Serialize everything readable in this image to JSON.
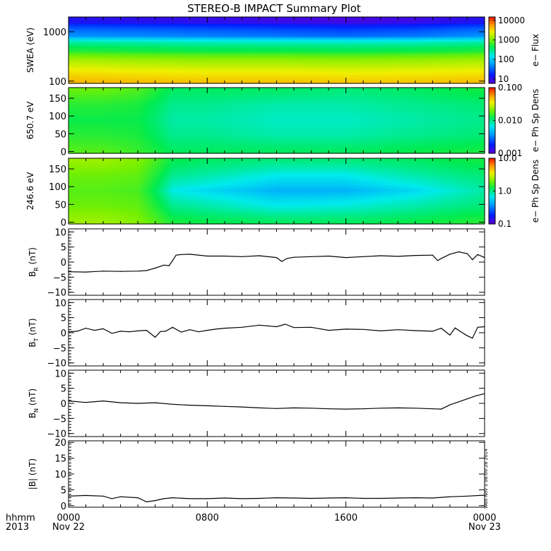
{
  "figure": {
    "title": "STEREO-B IMPACT Summary Plot",
    "stamp": "Wed Nov  5 08:09:28 2014",
    "time_axis": {
      "row1_label": "hhmm",
      "row2_label": "2013",
      "ticks": [
        {
          "hours": 0,
          "time": "0000",
          "date": "Nov 22"
        },
        {
          "hours": 8,
          "time": "0800",
          "date": ""
        },
        {
          "hours": 16,
          "time": "1600",
          "date": ""
        },
        {
          "hours": 24,
          "time": "0000",
          "date": "Nov 23"
        }
      ],
      "range_hours": [
        0,
        24
      ],
      "minor_tick_hours": 1
    }
  },
  "chart_data": [
    {
      "type": "heatmap",
      "id": "swea",
      "ylabel": "SWEA (eV)",
      "yscale": "log",
      "ylim": [
        90,
        2000
      ],
      "yticks": [
        {
          "v": 100,
          "label": "100"
        },
        {
          "v": 1000,
          "label": "1000"
        }
      ],
      "colorbar": {
        "label": "e− Flux",
        "scale": "log",
        "range": [
          6,
          15000
        ],
        "ticks": [
          {
            "v": 10,
            "label": "10"
          },
          {
            "v": 100,
            "label": "100"
          },
          {
            "v": 1000,
            "label": "1000"
          },
          {
            "v": 10000,
            "label": "10000"
          }
        ]
      },
      "time_hours": [
        0,
        4,
        8,
        12,
        16,
        20,
        24
      ],
      "energy_eV": [
        100,
        200,
        400,
        800,
        1600
      ],
      "flux": [
        [
          4500,
          2200,
          600,
          60,
          12
        ],
        [
          4200,
          2000,
          550,
          55,
          11
        ],
        [
          4000,
          1900,
          500,
          50,
          10
        ],
        [
          4000,
          1900,
          500,
          45,
          9
        ],
        [
          3800,
          1800,
          480,
          40,
          8
        ],
        [
          3900,
          1900,
          500,
          45,
          9
        ],
        [
          4200,
          2100,
          580,
          60,
          12
        ]
      ]
    },
    {
      "type": "heatmap",
      "id": "pad650",
      "ylabel": "650.7 eV",
      "ylim": [
        -5,
        180
      ],
      "yticks": [
        {
          "v": 0,
          "label": "0"
        },
        {
          "v": 50,
          "label": "50"
        },
        {
          "v": 100,
          "label": "100"
        },
        {
          "v": 150,
          "label": "150"
        }
      ],
      "colorbar": {
        "label": "e− Ph Sp Dens",
        "scale": "log",
        "range": [
          0.001,
          0.1
        ],
        "ticks": [
          {
            "v": 0.001,
            "label": "0.001"
          },
          {
            "v": 0.01,
            "label": "0.010"
          },
          {
            "v": 0.1,
            "label": "0.100"
          }
        ]
      },
      "time_hours": [
        0,
        2,
        4,
        6,
        8,
        12,
        16,
        20,
        24
      ],
      "pitch_angle_deg": [
        0,
        45,
        90,
        135,
        180
      ],
      "density": [
        [
          0.018,
          0.015,
          0.013,
          0.015,
          0.02
        ],
        [
          0.018,
          0.015,
          0.013,
          0.015,
          0.02
        ],
        [
          0.016,
          0.014,
          0.013,
          0.014,
          0.018
        ],
        [
          0.012,
          0.01,
          0.009,
          0.01,
          0.012
        ],
        [
          0.012,
          0.01,
          0.009,
          0.01,
          0.012
        ],
        [
          0.012,
          0.009,
          0.008,
          0.009,
          0.012
        ],
        [
          0.012,
          0.009,
          0.008,
          0.009,
          0.011
        ],
        [
          0.013,
          0.01,
          0.009,
          0.01,
          0.012
        ],
        [
          0.014,
          0.011,
          0.01,
          0.011,
          0.014
        ]
      ]
    },
    {
      "type": "heatmap",
      "id": "pad246",
      "ylabel": "246.6 eV",
      "ylim": [
        -5,
        180
      ],
      "yticks": [
        {
          "v": 0,
          "label": "0"
        },
        {
          "v": 50,
          "label": "50"
        },
        {
          "v": 100,
          "label": "100"
        },
        {
          "v": 150,
          "label": "150"
        }
      ],
      "colorbar": {
        "label": "e− Ph Sp Dens",
        "scale": "log",
        "range": [
          0.1,
          10
        ],
        "ticks": [
          {
            "v": 0.1,
            "label": "0.1"
          },
          {
            "v": 1,
            "label": "1.0"
          },
          {
            "v": 10,
            "label": "10.0"
          }
        ]
      },
      "time_hours": [
        0,
        2,
        4,
        6,
        8,
        12,
        16,
        20,
        24
      ],
      "pitch_angle_deg": [
        0,
        45,
        90,
        135,
        180
      ],
      "density": [
        [
          2.5,
          2.0,
          1.8,
          2.0,
          2.5
        ],
        [
          2.5,
          2.0,
          1.8,
          2.0,
          2.5
        ],
        [
          2.2,
          1.9,
          1.7,
          1.9,
          2.2
        ],
        [
          1.4,
          1.0,
          0.7,
          1.0,
          1.3
        ],
        [
          1.3,
          0.9,
          0.6,
          0.9,
          1.2
        ],
        [
          1.2,
          0.7,
          0.45,
          0.7,
          1.1
        ],
        [
          1.2,
          0.75,
          0.45,
          0.7,
          1.1
        ],
        [
          1.3,
          0.9,
          0.6,
          0.9,
          1.2
        ],
        [
          1.5,
          1.1,
          0.9,
          1.1,
          1.4
        ]
      ]
    },
    {
      "type": "line",
      "id": "br",
      "ylabel": "B",
      "ylabel_sub": "R",
      "ylabel_unit": "(nT)",
      "ylim": [
        -11,
        11
      ],
      "yticks": [
        {
          "v": -10,
          "label": "−10"
        },
        {
          "v": -5,
          "label": "−5"
        },
        {
          "v": 0,
          "label": "0"
        },
        {
          "v": 5,
          "label": "5"
        },
        {
          "v": 10,
          "label": "10"
        }
      ],
      "x": [
        0,
        1,
        2,
        3,
        4,
        4.5,
        5,
        5.5,
        5.8,
        6.0,
        6.2,
        6.5,
        7,
        8,
        9,
        10,
        11,
        12,
        12.3,
        12.6,
        13,
        14,
        15,
        16,
        17,
        18,
        19,
        20,
        21,
        21.3,
        21.5,
        22,
        22.5,
        23,
        23.3,
        23.6,
        24
      ],
      "y": [
        -3.2,
        -3.3,
        -3.0,
        -3.1,
        -3.0,
        -2.8,
        -2.0,
        -1.0,
        -1.2,
        0.5,
        2.3,
        2.5,
        2.6,
        2.0,
        2.0,
        1.8,
        2.1,
        1.5,
        0.2,
        1.2,
        1.6,
        1.8,
        2.0,
        1.5,
        1.8,
        2.1,
        1.9,
        2.2,
        2.3,
        0.5,
        1.2,
        2.6,
        3.4,
        2.8,
        0.8,
        2.5,
        1.5
      ]
    },
    {
      "type": "line",
      "id": "bt",
      "ylabel": "B",
      "ylabel_sub": "T",
      "ylabel_unit": "(nT)",
      "ylim": [
        -11,
        11
      ],
      "yticks": [
        {
          "v": -10,
          "label": "−10"
        },
        {
          "v": -5,
          "label": "−5"
        },
        {
          "v": 0,
          "label": "0"
        },
        {
          "v": 5,
          "label": "5"
        },
        {
          "v": 10,
          "label": "10"
        }
      ],
      "x": [
        0,
        0.5,
        1,
        1.5,
        2,
        2.5,
        3,
        3.5,
        4,
        4.5,
        5,
        5.3,
        5.6,
        6,
        6.5,
        7,
        7.5,
        8,
        8.5,
        9,
        10,
        11,
        12,
        12.5,
        13,
        14,
        15,
        16,
        17,
        18,
        19,
        20,
        21,
        21.5,
        22,
        22.3,
        22.6,
        23,
        23.3,
        23.6,
        24
      ],
      "y": [
        0.3,
        0.5,
        1.5,
        0.8,
        1.3,
        -0.2,
        0.5,
        0.3,
        0.6,
        0.8,
        -1.5,
        0.4,
        0.5,
        1.8,
        0.2,
        1.0,
        0.3,
        0.8,
        1.2,
        1.5,
        1.8,
        2.5,
        2.0,
        2.8,
        1.7,
        1.8,
        0.8,
        1.2,
        1.1,
        0.6,
        1.0,
        0.7,
        0.5,
        1.5,
        -0.8,
        1.6,
        0.4,
        -1.0,
        -1.8,
        1.8,
        2.0
      ]
    },
    {
      "type": "line",
      "id": "bn",
      "ylabel": "B",
      "ylabel_sub": "N",
      "ylabel_unit": "(nT)",
      "ylim": [
        -11,
        11
      ],
      "yticks": [
        {
          "v": -10,
          "label": "−10"
        },
        {
          "v": -5,
          "label": "−5"
        },
        {
          "v": 0,
          "label": "0"
        },
        {
          "v": 5,
          "label": "5"
        },
        {
          "v": 10,
          "label": "10"
        }
      ],
      "x": [
        0,
        1,
        2,
        3,
        4,
        5,
        6,
        7,
        8,
        9,
        10,
        11,
        12,
        13,
        14,
        15,
        16,
        17,
        18,
        19,
        20,
        21,
        21.5,
        22,
        22.5,
        23,
        23.5,
        24
      ],
      "y": [
        0.8,
        0.3,
        0.8,
        0.2,
        0.0,
        0.2,
        -0.3,
        -0.6,
        -0.8,
        -1.0,
        -1.2,
        -1.5,
        -1.7,
        -1.5,
        -1.6,
        -1.8,
        -1.9,
        -1.8,
        -1.6,
        -1.5,
        -1.6,
        -1.8,
        -1.9,
        -0.5,
        0.5,
        1.5,
        2.5,
        3.2
      ]
    },
    {
      "type": "line",
      "id": "bmag",
      "ylabel": "|B| (nT)",
      "ylim": [
        -0.5,
        20.5
      ],
      "yticks": [
        {
          "v": 0,
          "label": "0"
        },
        {
          "v": 5,
          "label": "5"
        },
        {
          "v": 10,
          "label": "10"
        },
        {
          "v": 15,
          "label": "15"
        },
        {
          "v": 20,
          "label": "20"
        }
      ],
      "x": [
        0,
        1,
        2,
        2.5,
        3,
        4,
        4.5,
        5,
        5.5,
        6,
        7,
        8,
        9,
        10,
        11,
        12,
        13,
        14,
        15,
        16,
        17,
        18,
        19,
        20,
        21,
        22,
        23,
        24
      ],
      "y": [
        3.0,
        3.2,
        3.0,
        2.2,
        2.8,
        2.5,
        1.2,
        1.6,
        2.2,
        2.5,
        2.2,
        2.2,
        2.4,
        2.2,
        2.3,
        2.5,
        2.4,
        2.3,
        2.4,
        2.5,
        2.3,
        2.3,
        2.4,
        2.5,
        2.4,
        2.8,
        3.0,
        3.3
      ]
    }
  ]
}
